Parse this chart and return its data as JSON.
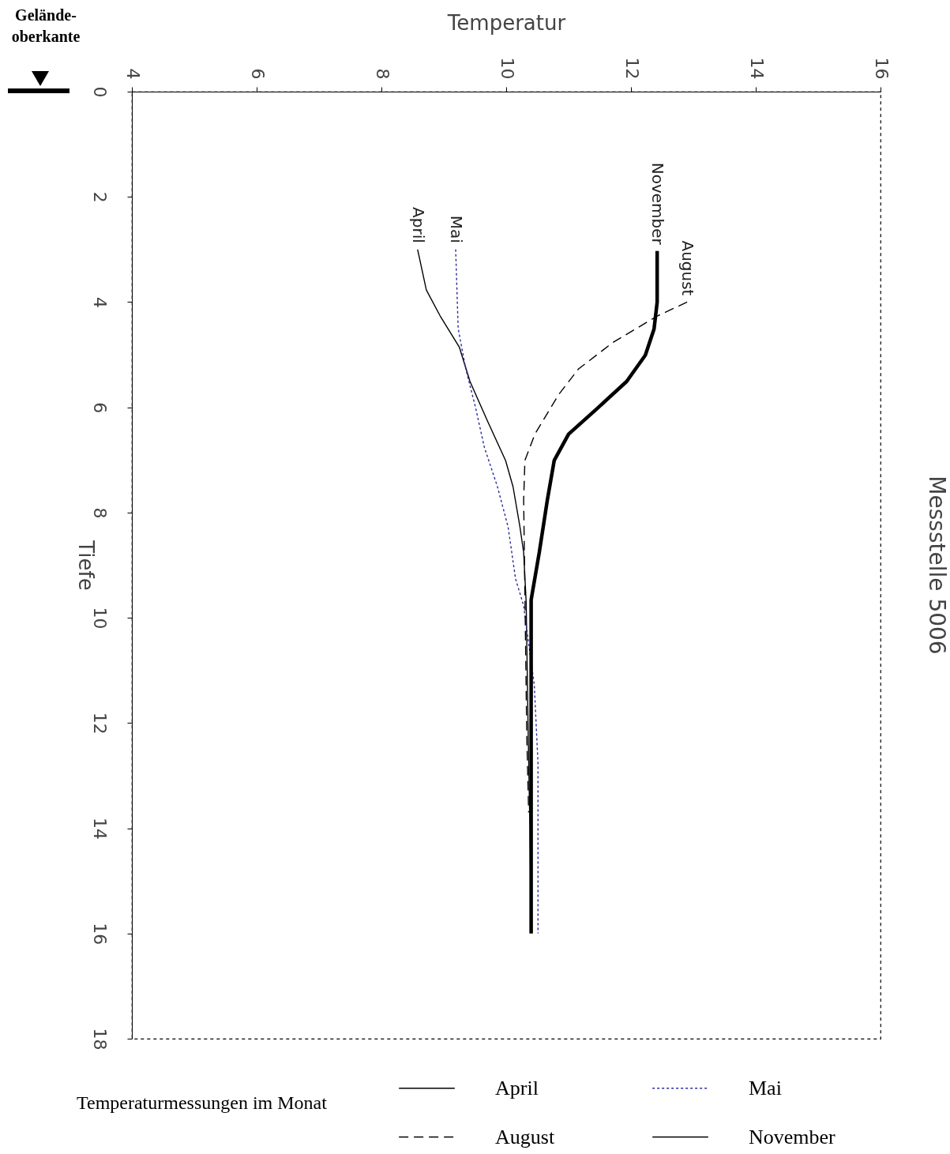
{
  "chart_data": {
    "type": "line",
    "title": "Messstelle 5006",
    "xlabel": "Temperatur",
    "ylabel": "Tiefe",
    "legend_title": "Temperaturmessungen im Monat",
    "annotations": [
      "Gelände- oberkante"
    ],
    "xlim": [
      4,
      16
    ],
    "xticks": [
      4,
      6,
      8,
      10,
      12,
      14,
      16
    ],
    "ylim": [
      18,
      0
    ],
    "yticks": [
      0,
      2,
      4,
      6,
      8,
      10,
      12,
      14,
      16,
      18
    ],
    "grid": false,
    "legend": "bottom",
    "marker": "none",
    "series": [
      {
        "name": "April",
        "color": "#000000",
        "line_style": "solid",
        "x": [
          8.58,
          8.72,
          8.94,
          9.25,
          9.42,
          9.7,
          9.99,
          10.11,
          10.22,
          10.28,
          10.32,
          10.35,
          10.38,
          10.4
        ],
        "values": [
          3.0,
          3.77,
          4.26,
          4.86,
          5.51,
          6.26,
          7.01,
          7.51,
          8.27,
          8.76,
          9.7,
          12,
          14,
          16
        ]
      },
      {
        "name": "Mai",
        "color": "#2a2aa0",
        "line_style": "dotted",
        "x": [
          9.19,
          9.23,
          9.35,
          9.51,
          9.65,
          9.86,
          10.03,
          10.15,
          10.28,
          10.38,
          10.45,
          10.51,
          10.51
        ],
        "values": [
          3.0,
          4.5,
          5.26,
          6.01,
          6.76,
          7.51,
          8.27,
          9.26,
          9.77,
          10.67,
          11.27,
          12.77,
          16
        ]
      },
      {
        "name": "August",
        "color": "#000000",
        "line_style": "dashed",
        "x": [
          12.9,
          12.43,
          11.72,
          11.16,
          10.84,
          10.46,
          10.3,
          10.28,
          10.33,
          10.36
        ],
        "values": [
          4.0,
          4.26,
          4.76,
          5.27,
          5.76,
          6.51,
          7.01,
          7.76,
          12.26,
          13.7
        ]
      },
      {
        "name": "November",
        "color": "#000000",
        "line_style": "solid",
        "x": [
          12.42,
          12.42,
          12.37,
          12.23,
          11.93,
          11.47,
          11.0,
          10.77,
          10.66,
          10.53,
          10.4,
          10.4
        ],
        "values": [
          3.03,
          4.0,
          4.51,
          5.01,
          5.51,
          6.01,
          6.51,
          7.01,
          7.76,
          8.76,
          9.66,
          16
        ]
      }
    ]
  }
}
